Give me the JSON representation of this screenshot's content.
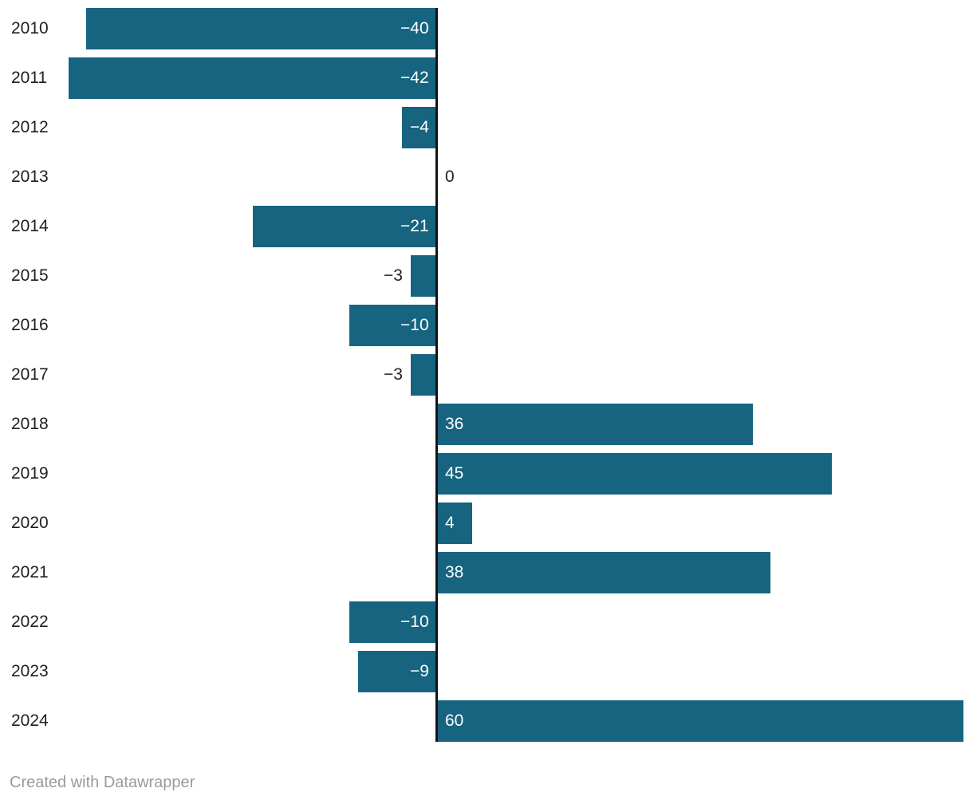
{
  "chart_data": {
    "type": "bar",
    "orientation": "horizontal",
    "title": "",
    "xlabel": "",
    "ylabel": "",
    "categories": [
      "2010",
      "2011",
      "2012",
      "2013",
      "2014",
      "2015",
      "2016",
      "2017",
      "2018",
      "2019",
      "2020",
      "2021",
      "2022",
      "2023",
      "2024"
    ],
    "values": [
      -40,
      -42,
      -4,
      0,
      -21,
      -3,
      -10,
      -3,
      36,
      45,
      4,
      38,
      -10,
      -9,
      60
    ],
    "xlim": [
      -42,
      60
    ],
    "grid": false,
    "legend": false,
    "value_labels": true,
    "bar_color": "#166480",
    "axis_color": "#141414",
    "category_label_color": "#1f1f1f",
    "value_label_inside_color": "#ffffff",
    "value_label_outside_color": "#1f1f1f"
  },
  "footer": {
    "attribution": "Created with Datawrapper",
    "attribution_color": "#9a9a9a"
  }
}
